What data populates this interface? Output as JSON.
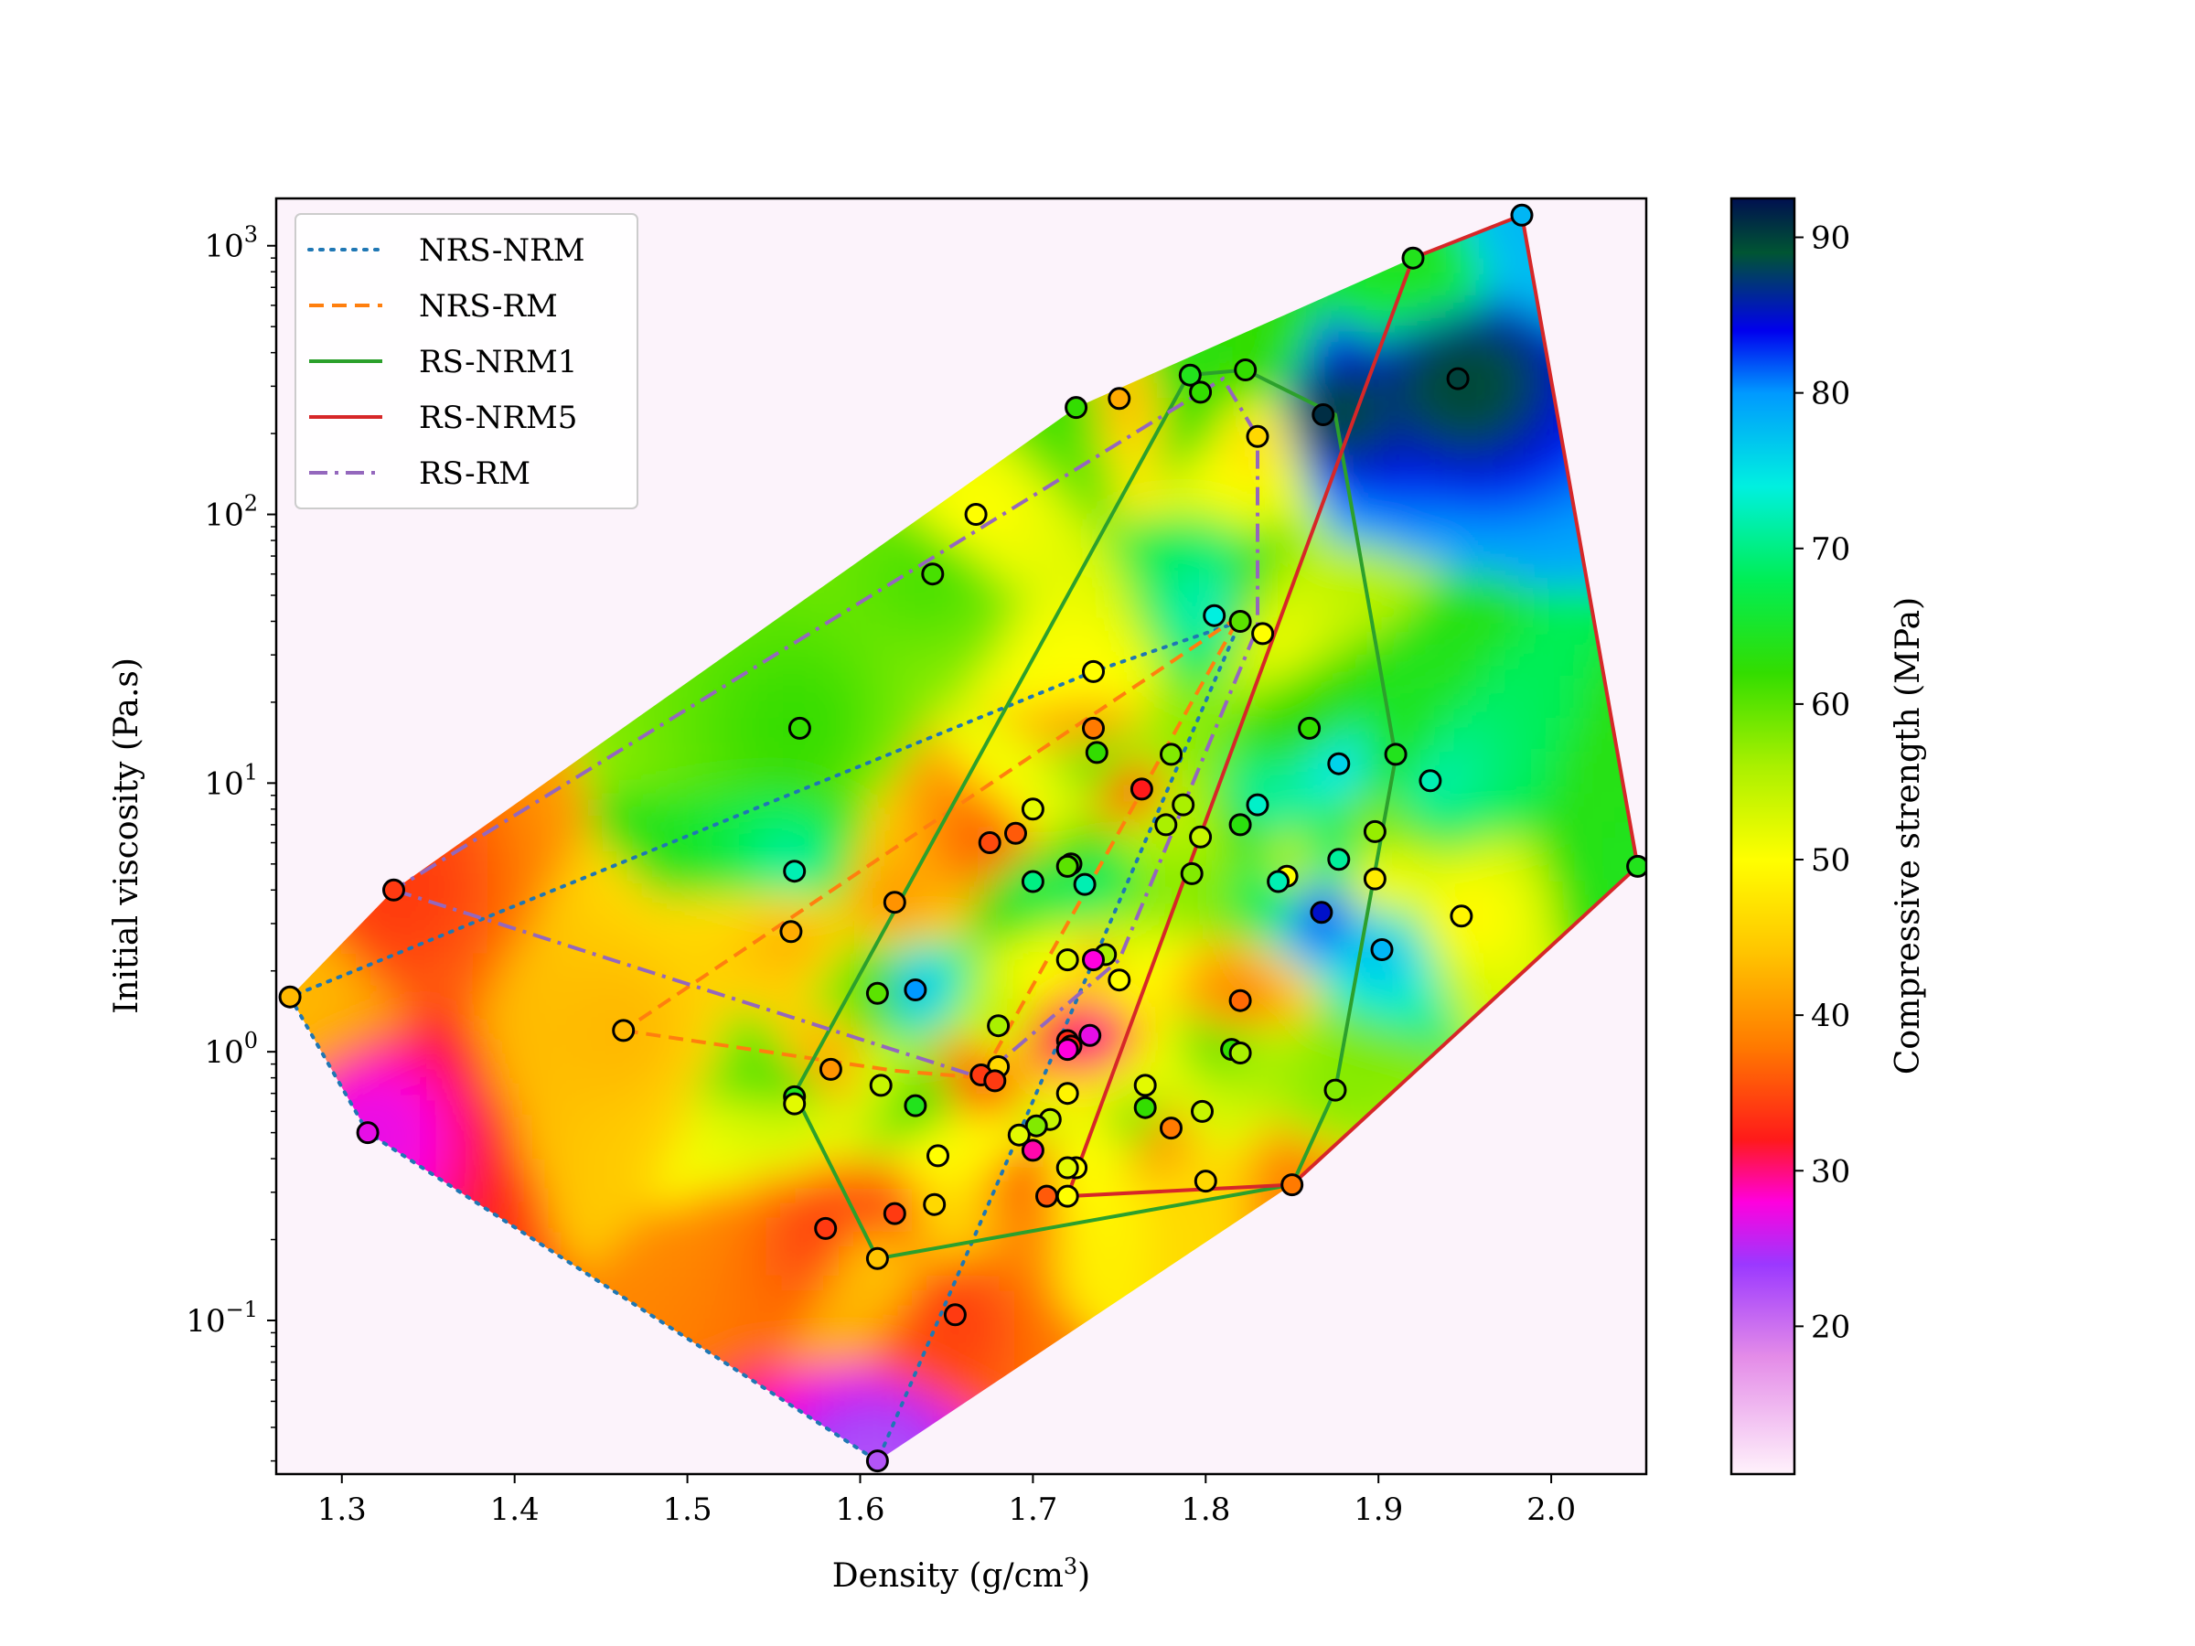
{
  "chart_data": {
    "type": "scatter",
    "xlabel": "Density (g/cm",
    "xlabel_sup": "3",
    "xlabel_close": ")",
    "ylabel": "Initial viscosity (Pa.s)",
    "colorbar_label": "Compressive strength (MPa)",
    "xlim": [
      1.262,
      2.055
    ],
    "ylim": [
      0.0268,
      1500
    ],
    "y_scale": "log",
    "x_ticks": [
      1.3,
      1.4,
      1.5,
      1.6,
      1.7,
      1.8,
      1.9,
      2.0
    ],
    "x_tick_labels": [
      "1.3",
      "1.4",
      "1.5",
      "1.6",
      "1.7",
      "1.8",
      "1.9",
      "2.0"
    ],
    "y_ticks": [
      {
        "value": 0.1,
        "base": "10",
        "exp": "−1"
      },
      {
        "value": 1,
        "base": "10",
        "exp": "0"
      },
      {
        "value": 10,
        "base": "10",
        "exp": "1"
      },
      {
        "value": 100,
        "base": "10",
        "exp": "2"
      },
      {
        "value": 1000,
        "base": "10",
        "exp": "3"
      }
    ],
    "colorbar_range": [
      10.5,
      92.5
    ],
    "colorbar_ticks": [
      20,
      30,
      40,
      50,
      60,
      70,
      80,
      90
    ],
    "colorbar_tick_labels": [
      "20",
      "30",
      "40",
      "50",
      "60",
      "70",
      "80",
      "90"
    ],
    "colormap_stops": [
      {
        "v": 10.5,
        "color": "#fff2fb"
      },
      {
        "v": 18,
        "color": "#e48ce8"
      },
      {
        "v": 24,
        "color": "#9b38ff"
      },
      {
        "v": 28,
        "color": "#ff00dd"
      },
      {
        "v": 32,
        "color": "#ff1a1a"
      },
      {
        "v": 38,
        "color": "#ff7a00"
      },
      {
        "v": 44,
        "color": "#ffc400"
      },
      {
        "v": 50,
        "color": "#ffff00"
      },
      {
        "v": 56,
        "color": "#aaf000"
      },
      {
        "v": 62,
        "color": "#33dd00"
      },
      {
        "v": 68,
        "color": "#00ee55"
      },
      {
        "v": 74,
        "color": "#00f0e0"
      },
      {
        "v": 80,
        "color": "#0099ff"
      },
      {
        "v": 84,
        "color": "#0000ee"
      },
      {
        "v": 89,
        "color": "#005533"
      },
      {
        "v": 92.5,
        "color": "#001050"
      }
    ],
    "legend_position": "top-left",
    "legend": [
      {
        "label": "NRS-NRM",
        "color": "#1f77b4",
        "style": "dotted"
      },
      {
        "label": "NRS-RM",
        "color": "#ff7f0e",
        "style": "dashed"
      },
      {
        "label": "RS-NRM1",
        "color": "#2ca02c",
        "style": "solid"
      },
      {
        "label": "RS-NRM5",
        "color": "#d62728",
        "style": "solid"
      },
      {
        "label": "RS-RM",
        "color": "#9467bd",
        "style": "dashdot"
      }
    ],
    "hulls": [
      {
        "name": "NRS-NRM",
        "color": "#1f77b4",
        "style": "dotted",
        "points": [
          [
            1.27,
            1.6
          ],
          [
            1.315,
            0.5
          ],
          [
            1.61,
            0.03
          ],
          [
            1.82,
            40
          ],
          [
            1.735,
            26
          ],
          [
            1.27,
            1.6
          ]
        ]
      },
      {
        "name": "NRS-RM",
        "color": "#ff7f0e",
        "style": "dashed",
        "points": [
          [
            1.463,
            1.2
          ],
          [
            1.62,
            0.85
          ],
          [
            1.67,
            0.8
          ],
          [
            1.82,
            42
          ],
          [
            1.463,
            1.2
          ]
        ]
      },
      {
        "name": "RS-NRM1",
        "color": "#2ca02c",
        "style": "solid",
        "points": [
          [
            1.562,
            0.7
          ],
          [
            1.79,
            330
          ],
          [
            1.823,
            345
          ],
          [
            1.875,
            235
          ],
          [
            1.91,
            12.5
          ],
          [
            1.875,
            0.72
          ],
          [
            1.85,
            0.32
          ],
          [
            1.61,
            0.17
          ],
          [
            1.562,
            0.7
          ]
        ]
      },
      {
        "name": "RS-NRM5",
        "color": "#d62728",
        "style": "solid",
        "points": [
          [
            1.72,
            0.29
          ],
          [
            1.92,
            900
          ],
          [
            1.983,
            1300
          ],
          [
            2.05,
            4.9
          ],
          [
            1.85,
            0.32
          ],
          [
            1.72,
            0.29
          ]
        ]
      },
      {
        "name": "RS-RM",
        "color": "#9467bd",
        "style": "dashdot",
        "points": [
          [
            1.33,
            4
          ],
          [
            1.67,
            0.8
          ],
          [
            1.75,
            2.2
          ],
          [
            1.83,
            38
          ],
          [
            1.83,
            195
          ],
          [
            1.81,
            320
          ],
          [
            1.33,
            4
          ]
        ]
      }
    ],
    "points": [
      {
        "x": 1.983,
        "y": 1300,
        "c": 78
      },
      {
        "x": 1.92,
        "y": 900,
        "c": 64
      },
      {
        "x": 1.946,
        "y": 320,
        "c": 90
      },
      {
        "x": 1.868,
        "y": 235,
        "c": 91
      },
      {
        "x": 1.823,
        "y": 345,
        "c": 62
      },
      {
        "x": 1.791,
        "y": 330,
        "c": 64
      },
      {
        "x": 1.797,
        "y": 285,
        "c": 62
      },
      {
        "x": 1.75,
        "y": 270,
        "c": 42
      },
      {
        "x": 1.725,
        "y": 250,
        "c": 62
      },
      {
        "x": 1.83,
        "y": 195,
        "c": 46
      },
      {
        "x": 1.667,
        "y": 100,
        "c": 50
      },
      {
        "x": 1.642,
        "y": 60,
        "c": 61
      },
      {
        "x": 1.805,
        "y": 42,
        "c": 74
      },
      {
        "x": 1.82,
        "y": 40,
        "c": 60
      },
      {
        "x": 1.833,
        "y": 36,
        "c": 50
      },
      {
        "x": 1.735,
        "y": 26,
        "c": 50
      },
      {
        "x": 1.565,
        "y": 16,
        "c": 62
      },
      {
        "x": 1.735,
        "y": 16,
        "c": 38
      },
      {
        "x": 1.86,
        "y": 16,
        "c": 62
      },
      {
        "x": 1.737,
        "y": 13,
        "c": 62
      },
      {
        "x": 1.91,
        "y": 12.8,
        "c": 64
      },
      {
        "x": 1.78,
        "y": 12.8,
        "c": 58
      },
      {
        "x": 1.877,
        "y": 11.8,
        "c": 76
      },
      {
        "x": 1.93,
        "y": 10.2,
        "c": 72
      },
      {
        "x": 1.763,
        "y": 9.5,
        "c": 32
      },
      {
        "x": 1.83,
        "y": 8.3,
        "c": 73
      },
      {
        "x": 1.787,
        "y": 8.3,
        "c": 56
      },
      {
        "x": 1.7,
        "y": 8.0,
        "c": 52
      },
      {
        "x": 1.777,
        "y": 7.0,
        "c": 56
      },
      {
        "x": 1.82,
        "y": 7.0,
        "c": 63
      },
      {
        "x": 1.69,
        "y": 6.5,
        "c": 36
      },
      {
        "x": 1.675,
        "y": 6.0,
        "c": 35
      },
      {
        "x": 1.797,
        "y": 6.3,
        "c": 54
      },
      {
        "x": 1.898,
        "y": 6.6,
        "c": 57
      },
      {
        "x": 1.877,
        "y": 5.2,
        "c": 71
      },
      {
        "x": 2.05,
        "y": 4.9,
        "c": 64
      },
      {
        "x": 1.722,
        "y": 5.0,
        "c": 62
      },
      {
        "x": 1.72,
        "y": 4.9,
        "c": 60
      },
      {
        "x": 1.562,
        "y": 4.7,
        "c": 72
      },
      {
        "x": 1.792,
        "y": 4.6,
        "c": 58
      },
      {
        "x": 1.847,
        "y": 4.5,
        "c": 50
      },
      {
        "x": 1.842,
        "y": 4.3,
        "c": 72
      },
      {
        "x": 1.7,
        "y": 4.3,
        "c": 70
      },
      {
        "x": 1.898,
        "y": 4.4,
        "c": 48
      },
      {
        "x": 1.73,
        "y": 4.2,
        "c": 72
      },
      {
        "x": 1.33,
        "y": 4.0,
        "c": 34
      },
      {
        "x": 1.62,
        "y": 3.6,
        "c": 40
      },
      {
        "x": 1.867,
        "y": 3.3,
        "c": 85
      },
      {
        "x": 1.948,
        "y": 3.2,
        "c": 49
      },
      {
        "x": 1.56,
        "y": 2.8,
        "c": 42
      },
      {
        "x": 1.902,
        "y": 2.4,
        "c": 78
      },
      {
        "x": 1.742,
        "y": 2.3,
        "c": 56
      },
      {
        "x": 1.72,
        "y": 2.2,
        "c": 52
      },
      {
        "x": 1.735,
        "y": 2.2,
        "c": 28
      },
      {
        "x": 1.75,
        "y": 1.85,
        "c": 50
      },
      {
        "x": 1.632,
        "y": 1.7,
        "c": 80
      },
      {
        "x": 1.27,
        "y": 1.6,
        "c": 43
      },
      {
        "x": 1.61,
        "y": 1.65,
        "c": 60
      },
      {
        "x": 1.82,
        "y": 1.55,
        "c": 37
      },
      {
        "x": 1.68,
        "y": 1.25,
        "c": 56
      },
      {
        "x": 1.463,
        "y": 1.2,
        "c": 43
      },
      {
        "x": 1.733,
        "y": 1.15,
        "c": 27
      },
      {
        "x": 1.72,
        "y": 1.1,
        "c": 33
      },
      {
        "x": 1.722,
        "y": 1.05,
        "c": 32
      },
      {
        "x": 1.72,
        "y": 1.02,
        "c": 28
      },
      {
        "x": 1.815,
        "y": 1.02,
        "c": 62
      },
      {
        "x": 1.82,
        "y": 0.99,
        "c": 56
      },
      {
        "x": 1.68,
        "y": 0.88,
        "c": 46
      },
      {
        "x": 1.583,
        "y": 0.86,
        "c": 40
      },
      {
        "x": 1.67,
        "y": 0.82,
        "c": 34
      },
      {
        "x": 1.678,
        "y": 0.78,
        "c": 34
      },
      {
        "x": 1.612,
        "y": 0.75,
        "c": 54
      },
      {
        "x": 1.765,
        "y": 0.75,
        "c": 52
      },
      {
        "x": 1.875,
        "y": 0.72,
        "c": 58
      },
      {
        "x": 1.72,
        "y": 0.7,
        "c": 49
      },
      {
        "x": 1.562,
        "y": 0.68,
        "c": 64
      },
      {
        "x": 1.562,
        "y": 0.64,
        "c": 52
      },
      {
        "x": 1.632,
        "y": 0.63,
        "c": 64
      },
      {
        "x": 1.765,
        "y": 0.62,
        "c": 62
      },
      {
        "x": 1.798,
        "y": 0.6,
        "c": 54
      },
      {
        "x": 1.71,
        "y": 0.56,
        "c": 54
      },
      {
        "x": 1.702,
        "y": 0.53,
        "c": 58
      },
      {
        "x": 1.78,
        "y": 0.52,
        "c": 38
      },
      {
        "x": 1.315,
        "y": 0.5,
        "c": 27
      },
      {
        "x": 1.692,
        "y": 0.49,
        "c": 52
      },
      {
        "x": 1.7,
        "y": 0.43,
        "c": 29
      },
      {
        "x": 1.645,
        "y": 0.41,
        "c": 50
      },
      {
        "x": 1.725,
        "y": 0.37,
        "c": 50
      },
      {
        "x": 1.72,
        "y": 0.37,
        "c": 52
      },
      {
        "x": 1.8,
        "y": 0.33,
        "c": 46
      },
      {
        "x": 1.85,
        "y": 0.32,
        "c": 38
      },
      {
        "x": 1.708,
        "y": 0.29,
        "c": 36
      },
      {
        "x": 1.72,
        "y": 0.29,
        "c": 50
      },
      {
        "x": 1.643,
        "y": 0.27,
        "c": 46
      },
      {
        "x": 1.62,
        "y": 0.25,
        "c": 34
      },
      {
        "x": 1.58,
        "y": 0.22,
        "c": 34
      },
      {
        "x": 1.61,
        "y": 0.17,
        "c": 44
      },
      {
        "x": 1.655,
        "y": 0.105,
        "c": 34
      },
      {
        "x": 1.61,
        "y": 0.03,
        "c": 22
      }
    ]
  }
}
